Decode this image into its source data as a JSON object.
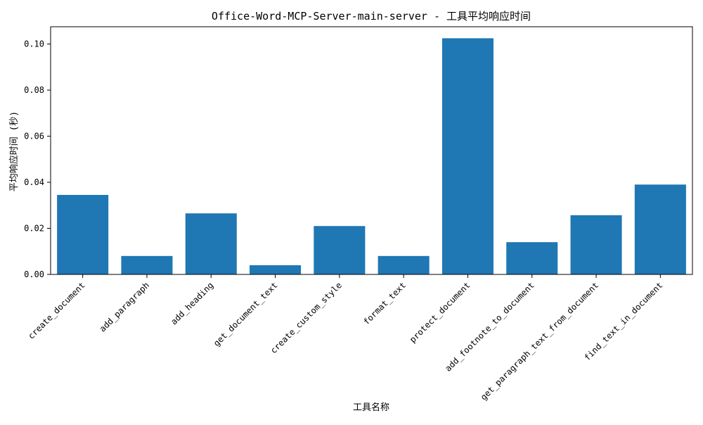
{
  "chart_data": {
    "type": "bar",
    "title": "Office-Word-MCP-Server-main-server - 工具平均响应时间",
    "xlabel": "工具名称",
    "ylabel": "平均响应时间 (秒)",
    "categories": [
      "create_document",
      "add_paragraph",
      "add_heading",
      "get_document_text",
      "create_custom_style",
      "format_text",
      "protect_document",
      "add_footnote_to_document",
      "get_paragraph_text_from_document",
      "find_text_in_document"
    ],
    "values": [
      0.0345,
      0.008,
      0.0265,
      0.004,
      0.021,
      0.008,
      0.1025,
      0.014,
      0.0257,
      0.039
    ],
    "ylim": [
      0,
      0.1075
    ],
    "yticks": [
      "0.00",
      "0.02",
      "0.04",
      "0.06",
      "0.08",
      "0.10"
    ],
    "bar_color": "#1f77b4",
    "grid": false
  }
}
